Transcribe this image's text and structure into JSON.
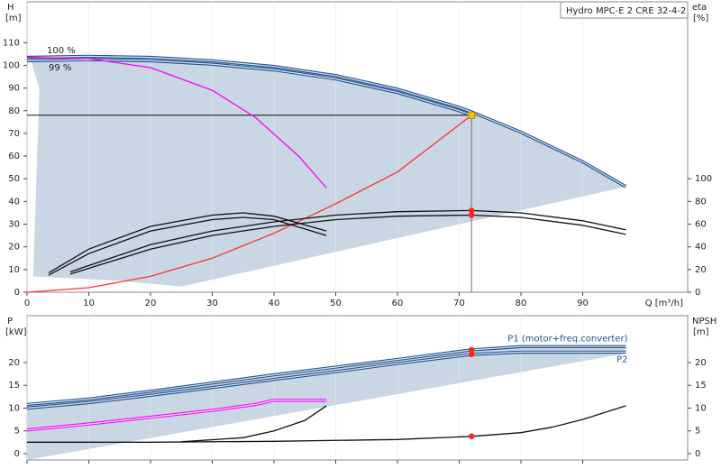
{
  "chart_data": [
    {
      "type": "line",
      "title": "Hydro MPC-E 2 CRE 32-4-2",
      "ylabel": "H",
      "yunit": "[m]",
      "y2label": "eta",
      "y2unit": "[%]",
      "xlabel": "Q [m³/h]",
      "annotations": [
        "100 %",
        "99 %"
      ],
      "xlim": [
        0,
        107
      ],
      "xticks": [
        0,
        10,
        20,
        30,
        40,
        50,
        60,
        70,
        80,
        90
      ],
      "ylim": [
        0,
        128
      ],
      "yticks": [
        0,
        10,
        20,
        30,
        40,
        50,
        60,
        70,
        80,
        90,
        100,
        110
      ],
      "y2lim": [
        0,
        256
      ],
      "y2ticks": [
        0,
        20,
        40,
        60,
        80,
        100
      ],
      "grid": true,
      "area": {
        "color": "#c9d6e3",
        "x": [
          0,
          20,
          40,
          60,
          72,
          80,
          90,
          97,
          25,
          15,
          1,
          2,
          0.5
        ],
        "y": [
          103.5,
          103.5,
          99.5,
          89.5,
          79.5,
          70.5,
          57.5,
          46.5,
          2.5,
          5,
          7,
          90,
          103
        ]
      },
      "series": [
        {
          "color": "#1f4e8c",
          "double": true,
          "x": [
            0,
            10,
            20,
            30,
            40,
            50,
            60,
            70,
            72,
            80,
            90,
            97
          ],
          "values": [
            103.5,
            104,
            103.5,
            102,
            99.5,
            95.5,
            89.5,
            81.5,
            79.5,
            70.5,
            57.5,
            46.5
          ]
        },
        {
          "color": "#1f4e8c",
          "double": true,
          "x": [
            0,
            10,
            20,
            30,
            40,
            50,
            60,
            70,
            72
          ],
          "values": [
            102,
            102.5,
            102,
            100.5,
            98,
            94,
            88,
            80,
            78
          ]
        },
        {
          "color": "#ff00ff",
          "x": [
            0,
            10,
            20,
            30,
            37,
            44,
            48.5
          ],
          "values": [
            103.5,
            103,
            99,
            89,
            77,
            60,
            46
          ]
        },
        {
          "color": "#ff3333",
          "x": [
            0,
            10,
            20,
            30,
            40,
            50,
            60,
            72
          ],
          "values": [
            0,
            2,
            7,
            15,
            26,
            39,
            53,
            78
          ]
        },
        {
          "color": "#111111",
          "axis": "y2",
          "x": [
            3.5,
            10,
            20,
            30,
            35,
            40,
            48.5
          ],
          "values": [
            17,
            38,
            58,
            68,
            70,
            67,
            54
          ]
        },
        {
          "color": "#111111",
          "axis": "y2",
          "x": [
            3.5,
            10,
            20,
            30,
            35,
            40,
            48.5
          ],
          "values": [
            15,
            34,
            54,
            64,
            66,
            64,
            50
          ]
        },
        {
          "color": "#111111",
          "axis": "y2",
          "x": [
            7,
            20,
            30,
            40,
            50,
            60,
            72,
            80,
            90,
            97
          ],
          "values": [
            18,
            42,
            54,
            62,
            68,
            71,
            72,
            70,
            63,
            55
          ]
        },
        {
          "color": "#111111",
          "axis": "y2",
          "x": [
            7,
            20,
            30,
            40,
            50,
            60,
            72,
            80,
            90,
            97
          ],
          "values": [
            16,
            38,
            50,
            58,
            64,
            67,
            68,
            66,
            59,
            51
          ]
        }
      ],
      "duty": {
        "x": 72,
        "y": 78
      },
      "points": [
        {
          "x": 72,
          "y": 78,
          "color": "#f5c400",
          "shape": "square"
        },
        {
          "x": 72,
          "y": 72,
          "axis": "y2",
          "color": "#ff2020"
        },
        {
          "x": 72,
          "y": 68,
          "axis": "y2",
          "color": "#ff2020"
        }
      ]
    },
    {
      "type": "line",
      "ylabel": "P",
      "yunit": "[kW]",
      "y2label": "NPSH",
      "y2unit": "[m]",
      "xlim": [
        0,
        107
      ],
      "ylim": [
        -1.4,
        30.3
      ],
      "yticks": [
        0,
        5,
        10,
        15,
        20
      ],
      "y2lim": [
        -1.4,
        30.3
      ],
      "y2ticks": [
        0,
        5,
        10,
        15,
        20
      ],
      "grid": true,
      "area": {
        "color": "#c9d6e3",
        "x": [
          0,
          20,
          40,
          60,
          75,
          97,
          97,
          0
        ],
        "y": [
          10.5,
          13.5,
          17.3,
          20.7,
          23.5,
          23.5,
          22,
          -1.4
        ]
      },
      "series": [
        {
          "name": "P1 (motor+freq.converter)",
          "color": "#1f4e8c",
          "double": true,
          "x": [
            0,
            10,
            20,
            30,
            40,
            50,
            60,
            72,
            80,
            97
          ],
          "values": [
            10.8,
            12,
            13.7,
            15.5,
            17.3,
            19,
            20.7,
            22.8,
            23.5,
            23.5
          ]
        },
        {
          "name": "P2",
          "color": "#1f4e8c",
          "double": true,
          "x": [
            0,
            10,
            20,
            30,
            40,
            50,
            60,
            72,
            80,
            97
          ],
          "values": [
            10,
            11.2,
            12.8,
            14.5,
            16.3,
            18,
            19.8,
            21.8,
            22.3,
            22.3
          ]
        },
        {
          "color": "#ff00ff",
          "double": true,
          "x": [
            0,
            10,
            20,
            30,
            37,
            40,
            48.5
          ],
          "values": [
            5.2,
            6.5,
            8,
            9.5,
            10.8,
            11.7,
            11.7
          ]
        },
        {
          "color": "#111111",
          "axis": "y2",
          "x": [
            0,
            20,
            40,
            60,
            72,
            80,
            85,
            90,
            97
          ],
          "values": [
            2.5,
            2.5,
            2.7,
            3.1,
            3.8,
            4.6,
            5.8,
            7.5,
            10.5
          ]
        },
        {
          "color": "#111111",
          "axis": "y2",
          "x": [
            25,
            35,
            40,
            45,
            48.5
          ],
          "values": [
            2.6,
            3.5,
            5,
            7.3,
            10.5
          ]
        }
      ],
      "points": [
        {
          "x": 72,
          "y": 22.8,
          "color": "#ff2020"
        },
        {
          "x": 72,
          "y": 21.8,
          "color": "#ff2020"
        },
        {
          "x": 72,
          "y": 3.8,
          "axis": "y2",
          "color": "#ff2020"
        }
      ]
    }
  ]
}
